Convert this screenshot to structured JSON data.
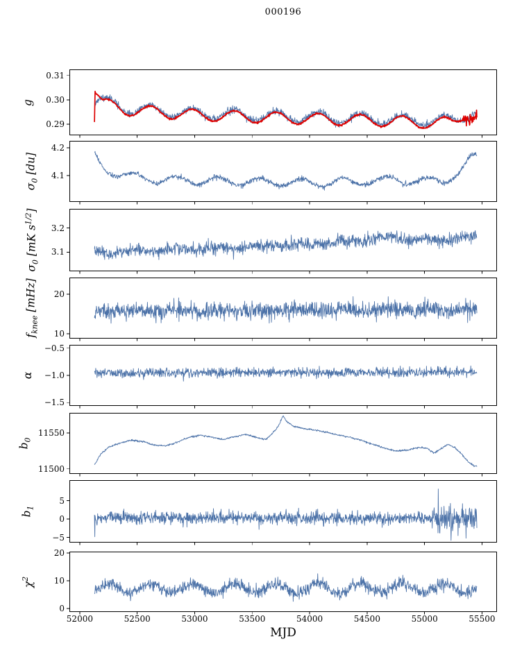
{
  "title": "000196",
  "xlabel": "MJD",
  "chart_data": {
    "type": "line",
    "title": "000196",
    "xlabel": "MJD",
    "grid": false,
    "legend": "none",
    "xlim": [
      51910,
      55630
    ],
    "xticks": [
      52000,
      52500,
      53000,
      53500,
      54000,
      54500,
      55000,
      55500
    ],
    "xtick_labels": [
      "52000",
      "52500",
      "53000",
      "53500",
      "54000",
      "54500",
      "55000",
      "55500"
    ],
    "x_range_data": [
      52128,
      55455
    ],
    "colors": {
      "data": "#4c72a8",
      "model": "#dd0000",
      "axis": "#000000"
    },
    "panels": [
      {
        "id": "g",
        "ylabel": "g",
        "ylim": [
          0.2855,
          0.3125
        ],
        "yticks": [
          0.29,
          0.3,
          0.31
        ],
        "ytick_labels": [
          "0.29",
          "0.30",
          "0.31"
        ],
        "series": [
          {
            "name": "gain-data",
            "color": "#4c72a8",
            "lw": 0.9,
            "seed": 11,
            "noise": 0.0007,
            "trend": [
              [
                52128,
                0.2995
              ],
              [
                52180,
                0.3
              ],
              [
                52400,
                0.2965
              ],
              [
                53000,
                0.2945
              ],
              [
                53800,
                0.2932
              ],
              [
                54600,
                0.2922
              ],
              [
                55100,
                0.2915
              ],
              [
                55250,
                0.2918
              ],
              [
                55420,
                0.2948
              ]
            ],
            "osc": {
              "period": 365,
              "amp": 0.0021,
              "phase": 52160
            }
          },
          {
            "name": "gain-model",
            "color": "#dd0000",
            "lw": 1.7,
            "seed": 12,
            "noise": 0.00018,
            "trend": [
              [
                52128,
                0.292
              ],
              [
                52133,
                0.3045
              ],
              [
                52140,
                0.3035
              ],
              [
                52200,
                0.2985
              ],
              [
                52400,
                0.296
              ],
              [
                53000,
                0.2938
              ],
              [
                53800,
                0.2925
              ],
              [
                54600,
                0.2915
              ],
              [
                55100,
                0.2905
              ],
              [
                55250,
                0.2908
              ],
              [
                55350,
                0.2945
              ],
              [
                55420,
                0.2935
              ]
            ],
            "osc": {
              "period": 365,
              "amp": 0.0023,
              "phase": 52160
            },
            "noise_tail": {
              "from": 55330,
              "sigma": 0.0012
            }
          }
        ]
      },
      {
        "id": "sigma0-du",
        "ylabel": "σ_{0} [du]",
        "ylim": [
          4.005,
          4.225
        ],
        "yticks": [
          4.1,
          4.2
        ],
        "ytick_labels": [
          "4.1",
          "4.2"
        ],
        "series": [
          {
            "name": "sigma0-du",
            "color": "#4c72a8",
            "lw": 0.9,
            "seed": 21,
            "noise": 0.0045,
            "trend": [
              [
                52128,
                4.175
              ],
              [
                52160,
                4.15
              ],
              [
                52210,
                4.125
              ],
              [
                52300,
                4.112
              ],
              [
                52420,
                4.098
              ],
              [
                52700,
                4.085
              ],
              [
                53000,
                4.082
              ],
              [
                53500,
                4.078
              ],
              [
                54000,
                4.074
              ],
              [
                54400,
                4.078
              ],
              [
                54750,
                4.085
              ],
              [
                55000,
                4.078
              ],
              [
                55150,
                4.082
              ],
              [
                55250,
                4.098
              ],
              [
                55330,
                4.12
              ],
              [
                55380,
                4.15
              ],
              [
                55420,
                4.168
              ]
            ],
            "osc": {
              "period": 365,
              "amp": 0.014,
              "phase": 52380
            }
          }
        ]
      },
      {
        "id": "sigma0-mk",
        "ylabel": "σ_{0} [mK s^{1/2}]",
        "ylim": [
          3.02,
          3.28
        ],
        "yticks": [
          3.1,
          3.2
        ],
        "ytick_labels": [
          "3.1",
          "3.2"
        ],
        "series": [
          {
            "name": "sigma0-mk",
            "color": "#4c72a8",
            "lw": 0.9,
            "seed": 31,
            "noise": 0.013,
            "trend": [
              [
                52128,
                3.098
              ],
              [
                52600,
                3.108
              ],
              [
                53200,
                3.118
              ],
              [
                53800,
                3.128
              ],
              [
                54300,
                3.142
              ],
              [
                54700,
                3.158
              ],
              [
                54900,
                3.152
              ],
              [
                55100,
                3.148
              ],
              [
                55250,
                3.155
              ],
              [
                55420,
                3.158
              ]
            ],
            "osc": {
              "period": 365,
              "amp": 0.006,
              "phase": 52380
            }
          }
        ]
      },
      {
        "id": "fknee",
        "ylabel": "f_{knee} [mHz]",
        "ylim": [
          8.8,
          24.2
        ],
        "yticks": [
          10,
          20
        ],
        "ytick_labels": [
          "10",
          "20"
        ],
        "series": [
          {
            "name": "fknee",
            "color": "#4c72a8",
            "lw": 0.9,
            "seed": 41,
            "noise": 1.05,
            "trend": [
              [
                52128,
                15.8
              ],
              [
                53000,
                15.9
              ],
              [
                54000,
                16.0
              ],
              [
                55420,
                16.0
              ]
            ],
            "osc": {
              "period": 365,
              "amp": 0.3,
              "phase": 52380
            }
          }
        ]
      },
      {
        "id": "alpha",
        "ylabel": "α",
        "ylim": [
          -1.56,
          -0.44
        ],
        "yticks": [
          -1.5,
          -1.0,
          -0.5
        ],
        "ytick_labels": [
          "−1.5",
          "−1.0",
          "−0.5"
        ],
        "series": [
          {
            "name": "alpha",
            "color": "#4c72a8",
            "lw": 0.9,
            "seed": 51,
            "noise": 0.042,
            "trend": [
              [
                52128,
                -0.96
              ],
              [
                55420,
                -0.94
              ]
            ]
          }
        ]
      },
      {
        "id": "b0",
        "ylabel": "b_{0}",
        "ylim": [
          11493,
          11578
        ],
        "yticks": [
          11500,
          11550
        ],
        "ytick_labels": [
          "11500",
          "11550"
        ],
        "series": [
          {
            "name": "b0",
            "color": "#4c72a8",
            "lw": 0.9,
            "seed": 61,
            "noise": 0.6,
            "trend": [
              [
                52128,
                11506
              ],
              [
                52180,
                11520
              ],
              [
                52250,
                11530
              ],
              [
                52350,
                11536
              ],
              [
                52450,
                11540
              ],
              [
                52550,
                11538
              ],
              [
                52650,
                11533
              ],
              [
                52750,
                11532
              ],
              [
                52850,
                11537
              ],
              [
                52950,
                11544
              ],
              [
                53050,
                11547
              ],
              [
                53150,
                11544
              ],
              [
                53250,
                11541
              ],
              [
                53350,
                11545
              ],
              [
                53450,
                11548
              ],
              [
                53550,
                11543
              ],
              [
                53620,
                11541
              ],
              [
                53680,
                11550
              ],
              [
                53730,
                11560
              ],
              [
                53770,
                11574
              ],
              [
                53800,
                11566
              ],
              [
                53850,
                11560
              ],
              [
                53950,
                11556
              ],
              [
                54050,
                11554
              ],
              [
                54150,
                11551
              ],
              [
                54250,
                11547
              ],
              [
                54350,
                11544
              ],
              [
                54450,
                11540
              ],
              [
                54550,
                11534
              ],
              [
                54650,
                11529
              ],
              [
                54750,
                11525
              ],
              [
                54850,
                11526
              ],
              [
                54950,
                11530
              ],
              [
                55020,
                11529
              ],
              [
                55080,
                11522
              ],
              [
                55140,
                11528
              ],
              [
                55200,
                11534
              ],
              [
                55260,
                11530
              ],
              [
                55320,
                11521
              ],
              [
                55380,
                11510
              ],
              [
                55430,
                11504
              ]
            ]
          }
        ]
      },
      {
        "id": "b1",
        "ylabel": "b_{1}",
        "ylim": [
          -6.4,
          10.6
        ],
        "yticks": [
          -5,
          0,
          5
        ],
        "ytick_labels": [
          "−5",
          "0",
          "5"
        ],
        "series": [
          {
            "name": "b1",
            "color": "#4c72a8",
            "lw": 0.9,
            "seed": 71,
            "noise": 0.85,
            "trend": [
              [
                52128,
                0.4
              ],
              [
                55420,
                0.2
              ]
            ],
            "noise_tail": {
              "from": 55050,
              "sigma": 1.6
            },
            "spikes": [
              [
                52132,
                -4.8
              ],
              [
                52900,
                -2.2
              ],
              [
                53560,
                -2.8
              ],
              [
                54060,
                2.6
              ],
              [
                55120,
                8.2
              ],
              [
                55170,
                3.5
              ],
              [
                55230,
                -5.8
              ],
              [
                55290,
                -4.5
              ],
              [
                55330,
                4.2
              ],
              [
                55360,
                -5.2
              ],
              [
                55390,
                3.0
              ]
            ]
          }
        ]
      },
      {
        "id": "chi2",
        "ylabel": "χ^{2}",
        "ylim": [
          -1.2,
          20.5
        ],
        "yticks": [
          0,
          10,
          20
        ],
        "ytick_labels": [
          "0",
          "10",
          "20"
        ],
        "series": [
          {
            "name": "chi2",
            "color": "#4c72a8",
            "lw": 0.9,
            "seed": 81,
            "noise": 1.1,
            "trend": [
              [
                52128,
                7.2
              ],
              [
                55420,
                7.4
              ]
            ],
            "osc": {
              "period": 365,
              "amp": 1.7,
              "phase": 52160
            }
          }
        ]
      }
    ]
  }
}
